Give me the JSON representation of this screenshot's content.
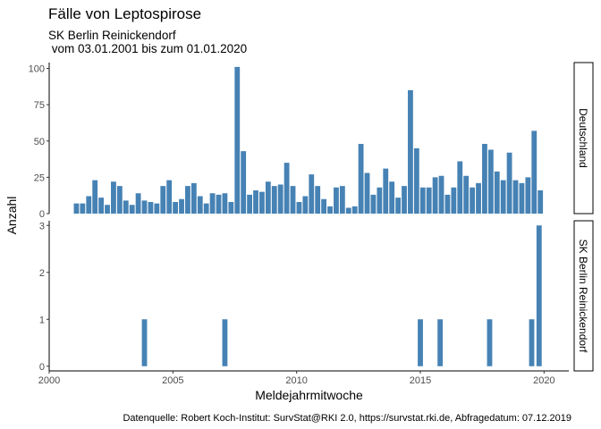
{
  "title": "Fälle von Leptospirose",
  "subtitle_line1": "SK Berlin Reinickendorf",
  "subtitle_line2": " vom 03.01.2001 bis zum 01.01.2020",
  "caption": "Datenquelle: Robert Koch-Institut: SurvStat@RKI 2.0, https://survstat.rki.de, Abfragedatum: 07.12.2019",
  "colors": {
    "bar": "#4682B4",
    "strip_fill": "#ffffff",
    "axis": "#000000"
  },
  "chart_data": [
    {
      "type": "bar",
      "facet": "Deutschland",
      "xlabel": "Meldejahrmitwoche",
      "ylabel": "Anzahl",
      "xlim": [
        2000,
        2021
      ],
      "xticks": [
        2000,
        2005,
        2010,
        2015,
        2020
      ],
      "ylim": [
        0,
        104
      ],
      "yticks": [
        0,
        25,
        50,
        75,
        100
      ],
      "grid": false,
      "bar_width_years": 0.21,
      "x": [
        2001.1,
        2001.35,
        2001.6,
        2001.85,
        2002.1,
        2002.35,
        2002.6,
        2002.85,
        2003.1,
        2003.35,
        2003.6,
        2003.85,
        2004.1,
        2004.35,
        2004.6,
        2004.85,
        2005.1,
        2005.35,
        2005.6,
        2005.85,
        2006.1,
        2006.35,
        2006.6,
        2006.85,
        2007.1,
        2007.35,
        2007.6,
        2007.85,
        2008.1,
        2008.35,
        2008.6,
        2008.85,
        2009.1,
        2009.35,
        2009.6,
        2009.85,
        2010.1,
        2010.35,
        2010.6,
        2010.85,
        2011.1,
        2011.35,
        2011.6,
        2011.85,
        2012.1,
        2012.35,
        2012.6,
        2012.85,
        2013.1,
        2013.35,
        2013.6,
        2013.85,
        2014.1,
        2014.35,
        2014.6,
        2014.85,
        2015.1,
        2015.35,
        2015.6,
        2015.85,
        2016.1,
        2016.35,
        2016.6,
        2016.85,
        2017.1,
        2017.35,
        2017.6,
        2017.85,
        2018.1,
        2018.35,
        2018.6,
        2018.85,
        2019.1,
        2019.35,
        2019.6,
        2019.85
      ],
      "values": [
        7,
        7,
        12,
        23,
        11,
        6,
        22,
        19,
        9,
        6,
        14,
        9,
        8,
        7,
        19,
        23,
        8,
        10,
        19,
        21,
        12,
        7,
        14,
        13,
        14,
        8,
        101,
        43,
        13,
        16,
        15,
        22,
        19,
        20,
        35,
        19,
        8,
        12,
        27,
        19,
        10,
        5,
        18,
        19,
        4,
        5,
        48,
        28,
        13,
        18,
        31,
        22,
        11,
        19,
        85,
        45,
        18,
        18,
        25,
        26,
        13,
        18,
        36,
        26,
        18,
        21,
        48,
        44,
        29,
        23,
        42,
        23,
        21,
        25,
        57,
        16
      ]
    },
    {
      "type": "bar",
      "facet": "SK Berlin Reinickendorf",
      "xlabel": "Meldejahrmitwoche",
      "ylabel": "Anzahl",
      "xlim": [
        2000,
        2021
      ],
      "xticks": [
        2000,
        2005,
        2010,
        2015,
        2020
      ],
      "ylim": [
        -0.1,
        3.1
      ],
      "yticks": [
        0,
        1,
        2,
        3
      ],
      "grid": false,
      "bar_width_years": 0.21,
      "x": [
        2003.85,
        2007.1,
        2015.0,
        2015.8,
        2017.8,
        2019.5,
        2019.8
      ],
      "values": [
        1,
        1,
        1,
        1,
        1,
        1,
        3
      ]
    }
  ]
}
